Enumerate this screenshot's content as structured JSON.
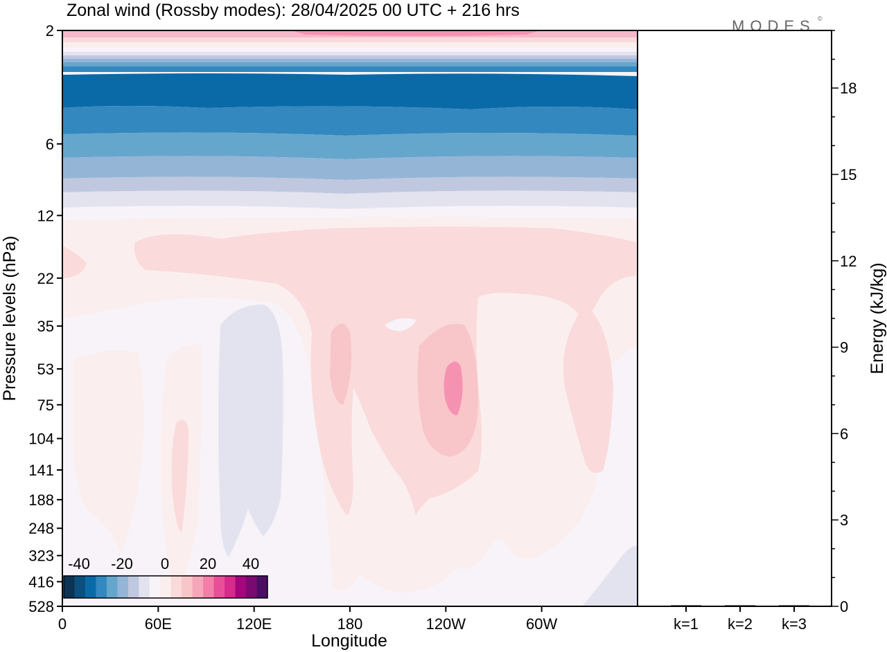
{
  "chart_data": [
    {
      "type": "heatmap",
      "title": "Zonal wind (Rossby modes):  28/04/2025  00 UTC  + 216 hrs",
      "logo": "MODES",
      "xlabel": "Longitude",
      "ylabel": "Pressure levels (hPa)",
      "x_ticks": [
        "0",
        "60E",
        "120E",
        "180",
        "120W",
        "60W"
      ],
      "x_tick_degrees": [
        0,
        60,
        120,
        180,
        240,
        300
      ],
      "x_range_degrees": [
        0,
        360
      ],
      "y_ticks": [
        "2",
        "6",
        "12",
        "22",
        "35",
        "53",
        "75",
        "104",
        "141",
        "188",
        "248",
        "323",
        "416",
        "528"
      ],
      "y_log_scale": true,
      "colorbar": {
        "tick_labels": [
          "-40",
          "-20",
          "0",
          "20",
          "40"
        ],
        "colors": [
          "#0b3354",
          "#0b4f7e",
          "#0a6aa8",
          "#3388bf",
          "#65a6cd",
          "#95b5d6",
          "#c0c8e0",
          "#e3e3ef",
          "#f7f3f8",
          "#fbeeee",
          "#fadada",
          "#f8c5c9",
          "#f5a6b8",
          "#f27fa7",
          "#e94f99",
          "#d62b8a",
          "#a5057d",
          "#7a0a72",
          "#4c0d65"
        ]
      },
      "band_colors": {
        "top_pink": "#f6b8cb",
        "blue_core": "#0a6aa8",
        "blue_mid": "#3388bf",
        "blue_light": "#95b5d6",
        "neutral": "#f7f3f8",
        "pink_light": "#fadada",
        "pink_mid": "#f8c5c9",
        "pink_strong": "#f592b2"
      }
    },
    {
      "type": "bar",
      "ylabel": "Energy (kJ/kg)",
      "categories": [
        "k=1",
        "k=2",
        "k=3"
      ],
      "values": [
        0.03,
        0.01,
        0.01
      ],
      "y_ticks": [
        "0",
        "3",
        "6",
        "9",
        "12",
        "15",
        "18"
      ],
      "ylim": [
        0,
        20
      ]
    }
  ]
}
